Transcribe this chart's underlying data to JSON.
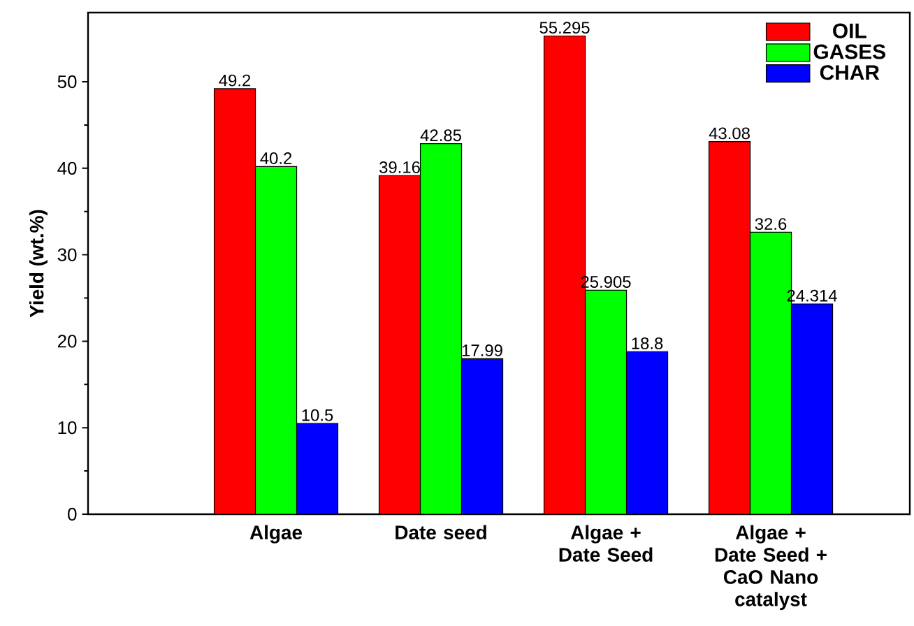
{
  "chart_data": {
    "type": "bar",
    "ylabel": "Yield (wt.%)",
    "categories": [
      "Algae",
      "Date seed",
      "Algae + Date Seed",
      "Algae + Date Seed + CaO Nano catalyst"
    ],
    "series": [
      {
        "name": "OIL",
        "color": "#ff0000",
        "values": [
          49.2,
          39.16,
          55.295,
          43.08
        ]
      },
      {
        "name": "GASES",
        "color": "#00ff00",
        "values": [
          40.2,
          42.85,
          25.905,
          32.6
        ]
      },
      {
        "name": "CHAR",
        "color": "#0000ff",
        "values": [
          10.5,
          17.99,
          18.8,
          24.314
        ]
      }
    ],
    "ylim": [
      0,
      58
    ],
    "yticks": [
      0,
      10,
      20,
      30,
      40,
      50
    ],
    "data_labels": true,
    "legend": "top right"
  }
}
